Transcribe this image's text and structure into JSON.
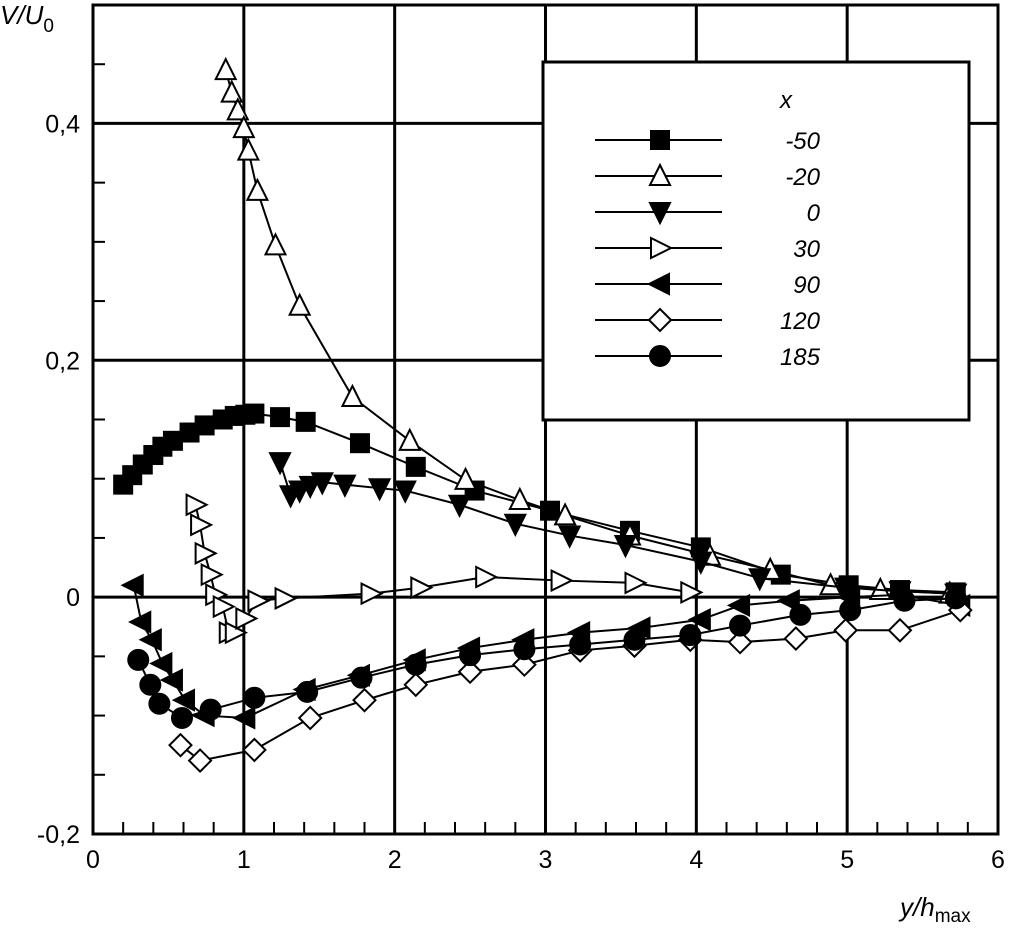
{
  "chart_data": {
    "type": "line",
    "title": "",
    "xlabel": "y/h",
    "xlabel_sub": "max",
    "ylabel": "V/U",
    "ylabel_sub": "0",
    "xlim": [
      0,
      6
    ],
    "ylim": [
      -0.2,
      0.5
    ],
    "xticks": [
      "0",
      "1",
      "2",
      "3",
      "4",
      "5",
      "6"
    ],
    "yticks": [
      "-0,2",
      "0",
      "0,2",
      "0,4"
    ],
    "xtick_values": [
      0,
      1,
      2,
      3,
      4,
      5,
      6
    ],
    "ytick_values": [
      -0.2,
      0,
      0.2,
      0.4
    ],
    "grid": true,
    "legend": {
      "title": "x",
      "placement": "top-right"
    },
    "series": [
      {
        "name": "-50",
        "marker": "square-filled",
        "x": [
          0.2,
          0.26,
          0.33,
          0.4,
          0.46,
          0.53,
          0.64,
          0.74,
          0.86,
          0.94,
          1.01,
          1.07,
          1.24,
          1.41,
          1.77,
          2.14,
          2.53,
          3.03,
          3.56,
          4.03,
          4.56,
          5.01,
          5.35,
          5.72
        ],
        "y": [
          0.095,
          0.103,
          0.112,
          0.12,
          0.127,
          0.132,
          0.139,
          0.145,
          0.15,
          0.153,
          0.154,
          0.155,
          0.152,
          0.148,
          0.13,
          0.11,
          0.09,
          0.073,
          0.056,
          0.042,
          0.019,
          0.01,
          0.006,
          0.004
        ]
      },
      {
        "name": "-20",
        "marker": "triangle-up-open",
        "x": [
          0.88,
          0.92,
          0.96,
          1.0,
          1.03,
          1.09,
          1.21,
          1.37,
          1.72,
          2.1,
          2.47,
          2.83,
          3.13,
          3.56,
          4.09,
          4.49,
          4.89,
          5.22,
          5.68
        ],
        "y": [
          0.445,
          0.426,
          0.411,
          0.396,
          0.377,
          0.343,
          0.297,
          0.246,
          0.169,
          0.132,
          0.099,
          0.082,
          0.069,
          0.052,
          0.035,
          0.023,
          0.01,
          0.006,
          0.003
        ]
      },
      {
        "name": "0",
        "marker": "triangle-down-filled",
        "x": [
          1.24,
          1.31,
          1.37,
          1.44,
          1.52,
          1.67,
          1.9,
          2.07,
          2.43,
          2.8,
          3.16,
          3.53,
          4.03,
          4.42,
          4.99,
          5.35,
          5.72
        ],
        "y": [
          0.114,
          0.086,
          0.09,
          0.094,
          0.097,
          0.095,
          0.092,
          0.09,
          0.078,
          0.062,
          0.052,
          0.044,
          0.03,
          0.016,
          0.008,
          0.005,
          0.003
        ]
      },
      {
        "name": "30",
        "marker": "triangle-right-open",
        "x": [
          0.68,
          0.71,
          0.74,
          0.78,
          0.81,
          0.86,
          0.9,
          0.94,
          1.01,
          1.09,
          1.27,
          1.84,
          2.17,
          2.6,
          3.1,
          3.59,
          3.96
        ],
        "y": [
          0.078,
          0.061,
          0.037,
          0.019,
          0.002,
          -0.008,
          -0.03,
          -0.03,
          -0.018,
          -0.003,
          -0.001,
          0.003,
          0.008,
          0.017,
          0.014,
          0.012,
          0.004
        ]
      },
      {
        "name": "90",
        "marker": "triangle-left-filled",
        "x": [
          0.27,
          0.32,
          0.39,
          0.46,
          0.53,
          0.61,
          0.74,
          1.01,
          1.41,
          1.77,
          2.14,
          2.5,
          2.86,
          3.23,
          3.63,
          4.03,
          4.29,
          4.62,
          5.02,
          5.35,
          5.75
        ],
        "y": [
          0.01,
          -0.021,
          -0.036,
          -0.056,
          -0.07,
          -0.087,
          -0.1,
          -0.102,
          -0.078,
          -0.066,
          -0.053,
          -0.043,
          -0.036,
          -0.03,
          -0.026,
          -0.019,
          -0.007,
          -0.003,
          0.0,
          0.002,
          -0.007
        ]
      },
      {
        "name": "120",
        "marker": "diamond-open",
        "x": [
          0.58,
          0.71,
          1.07,
          1.44,
          1.8,
          2.14,
          2.5,
          2.86,
          3.23,
          3.59,
          3.96,
          4.29,
          4.66,
          4.99,
          5.35,
          5.75
        ],
        "y": [
          -0.125,
          -0.138,
          -0.129,
          -0.102,
          -0.087,
          -0.074,
          -0.063,
          -0.057,
          -0.045,
          -0.041,
          -0.036,
          -0.038,
          -0.035,
          -0.028,
          -0.028,
          -0.011
        ]
      },
      {
        "name": "185",
        "marker": "circle-filled",
        "x": [
          0.3,
          0.38,
          0.44,
          0.59,
          0.78,
          1.07,
          1.42,
          1.78,
          2.14,
          2.5,
          2.86,
          3.23,
          3.59,
          3.96,
          4.29,
          4.69,
          5.02,
          5.38,
          5.72
        ],
        "y": [
          -0.053,
          -0.074,
          -0.09,
          -0.102,
          -0.095,
          -0.085,
          -0.08,
          -0.068,
          -0.057,
          -0.049,
          -0.044,
          -0.04,
          -0.036,
          -0.032,
          -0.024,
          -0.015,
          -0.011,
          -0.003,
          -0.001
        ]
      }
    ]
  }
}
